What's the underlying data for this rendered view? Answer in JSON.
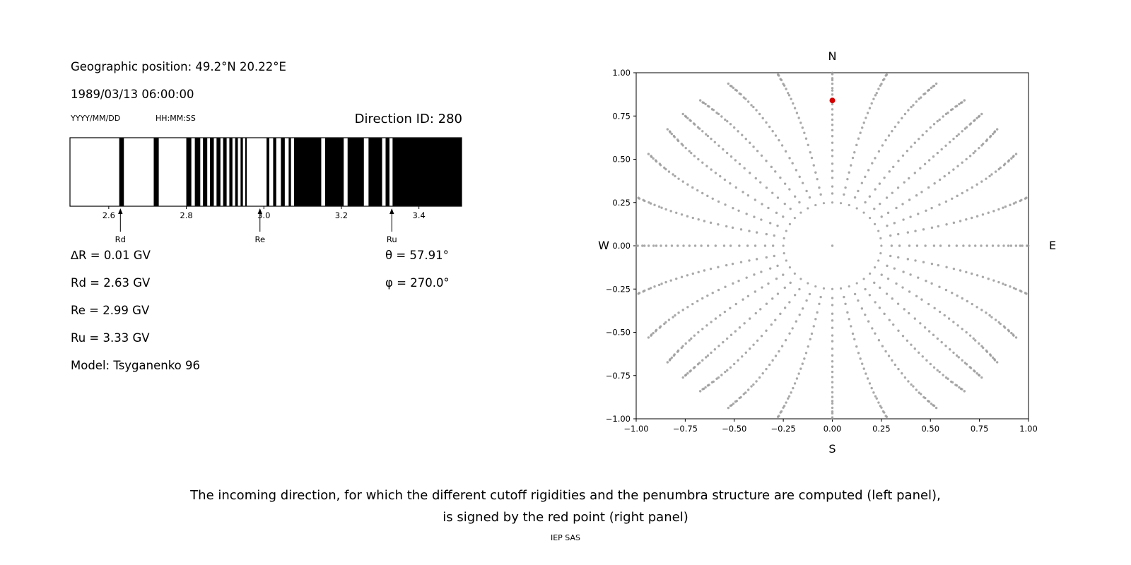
{
  "page": {
    "background": "#ffffff"
  },
  "left_panel": {
    "geographic_position": "Geographic position: 49.2°N 20.22°E",
    "datetime": "1989/03/13 06:00:00",
    "date_format_hint": "YYYY/MM/DD",
    "time_format_hint": "HH:MM:SS",
    "direction_id": "Direction ID: 280",
    "params": {
      "delta_r": "∆R = 0.01 GV",
      "theta": "θ = 57.91°",
      "rd": "Rd = 2.63 GV",
      "phi": "φ = 270.0°",
      "re": "Re = 2.99 GV",
      "ru": "Ru = 3.33 GV",
      "model": "Model: Tsyganenko 96"
    }
  },
  "caption": {
    "line1": "The incoming direction, for which the different cutoff rigidities and the penumbra structure are computed (left panel),",
    "line2": "is signed by the red point (right panel)",
    "credit": "IEP SAS"
  },
  "chart_data": [
    {
      "type": "barcode",
      "title": "Penumbra structure (black = forbidden rigidity bands)",
      "x_unit": "GV",
      "x_range": [
        2.5,
        3.51
      ],
      "x_ticks": [
        2.6,
        2.8,
        3.0,
        3.2,
        3.4
      ],
      "x_tick_labels": [
        "2.6",
        "2.8",
        "3.0",
        "3.2",
        "3.4"
      ],
      "black_bands": [
        [
          2.627,
          2.639
        ],
        [
          2.716,
          2.729
        ],
        [
          2.8,
          2.813
        ],
        [
          2.822,
          2.836
        ],
        [
          2.843,
          2.854
        ],
        [
          2.861,
          2.871
        ],
        [
          2.878,
          2.888
        ],
        [
          2.895,
          2.904
        ],
        [
          2.911,
          2.919
        ],
        [
          2.926,
          2.933
        ],
        [
          2.94,
          2.946
        ],
        [
          2.952,
          2.956
        ],
        [
          3.007,
          3.014
        ],
        [
          3.024,
          3.032
        ],
        [
          3.044,
          3.054
        ],
        [
          3.064,
          3.07
        ],
        [
          3.078,
          3.148
        ],
        [
          3.158,
          3.206
        ],
        [
          3.216,
          3.258
        ],
        [
          3.27,
          3.305
        ],
        [
          3.314,
          3.324
        ],
        [
          3.332,
          3.51
        ]
      ],
      "markers": [
        {
          "label": "Rd",
          "x": 2.63
        },
        {
          "label": "Re",
          "x": 2.99
        },
        {
          "label": "Ru",
          "x": 3.33
        }
      ]
    },
    {
      "type": "scatter",
      "title": "Sky map of viewing directions; the red dot marks the selected incoming direction",
      "xlim": [
        -1.0,
        1.0
      ],
      "ylim": [
        -1.0,
        1.0
      ],
      "x_ticks": [
        -1.0,
        -0.75,
        -0.5,
        -0.25,
        0.0,
        0.25,
        0.5,
        0.75,
        1.0
      ],
      "y_ticks": [
        1.0,
        0.75,
        0.5,
        0.25,
        0.0,
        -0.25,
        -0.5,
        -0.75,
        -1.0
      ],
      "x_tick_labels": [
        "−1.00",
        "−0.75",
        "−0.50",
        "−0.25",
        "0.00",
        "0.25",
        "0.50",
        "0.75",
        "1.00"
      ],
      "y_tick_labels": [
        "1.00",
        "0.75",
        "0.50",
        "0.25",
        "0.00",
        "−0.25",
        "−0.50",
        "−0.75",
        "−1.00"
      ],
      "compass_labels": {
        "top": "N",
        "bottom": "S",
        "left": "W",
        "right": "E"
      },
      "grid": false,
      "dot_color": "#9a9a9a",
      "pattern": {
        "type": "radial-spokes",
        "n_spokes": 32,
        "spoke_radii": [
          0.3,
          0.345,
          0.39,
          0.435,
          0.475,
          0.515,
          0.555,
          0.595,
          0.63,
          0.665,
          0.7,
          0.73,
          0.76,
          0.79,
          0.82,
          0.845,
          0.87,
          0.895,
          0.915,
          0.935,
          0.955,
          0.972,
          0.988,
          1.003,
          1.017,
          1.03,
          1.042,
          1.053,
          1.064,
          1.074
        ],
        "curvature_deg": 7,
        "inner_ring": {
          "radius": 0.25,
          "n_dots": 36
        },
        "center_dot": true
      },
      "highlight_point": {
        "x": 0.0,
        "y": 0.84,
        "color": "#d40000",
        "meaning": "selected incoming direction (Direction ID 280)"
      }
    }
  ]
}
